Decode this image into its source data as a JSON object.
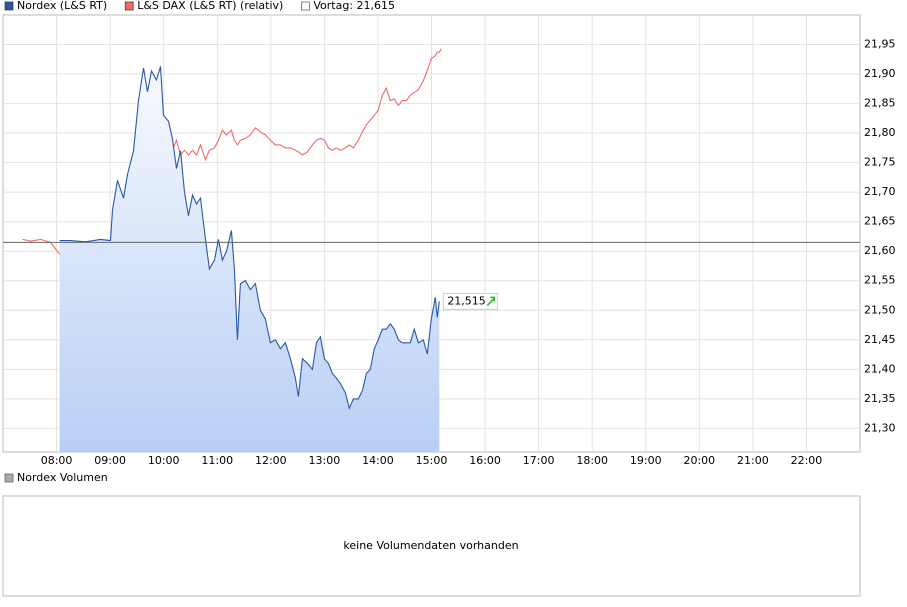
{
  "chart_data": {
    "type": "line",
    "x": [
      7.366,
      7.515,
      7.701,
      7.888,
      8.056,
      8.261,
      8.541,
      8.821,
      9.007,
      9.045,
      9.138,
      9.25,
      9.325,
      9.437,
      9.53,
      9.623,
      9.698,
      9.772,
      9.866,
      9.94,
      9.996,
      10.09,
      10.164,
      10.239,
      10.313,
      10.388,
      10.463,
      10.537,
      10.612,
      10.687,
      10.78,
      10.854,
      10.948,
      11.022,
      11.097,
      11.172,
      11.265,
      11.321,
      11.377,
      11.433,
      11.526,
      11.619,
      11.713,
      11.806,
      11.899,
      11.993,
      12.086,
      12.179,
      12.272,
      12.366,
      12.459,
      12.515,
      12.59,
      12.683,
      12.776,
      12.851,
      12.925,
      13.0,
      13.075,
      13.149,
      13.224,
      13.299,
      13.392,
      13.466,
      13.541,
      13.634,
      13.709,
      13.784,
      13.858,
      13.933,
      14.007,
      14.082,
      14.157,
      14.231,
      14.306,
      14.381,
      14.455,
      14.53,
      14.604,
      14.679,
      14.754,
      14.847,
      14.922,
      14.996,
      15.071,
      15.108,
      15.146,
      15.183
    ],
    "series": [
      {
        "name": "Nordex (L&S RT)",
        "color": "#2a56a8",
        "fill": "#b8cff5",
        "values": [
          null,
          null,
          null,
          null,
          21.618,
          21.618,
          21.616,
          21.62,
          21.618,
          21.67,
          21.72,
          21.69,
          21.73,
          21.77,
          21.855,
          21.91,
          21.87,
          21.905,
          21.89,
          21.913,
          21.83,
          21.82,
          21.79,
          21.74,
          21.77,
          21.7,
          21.66,
          21.695,
          21.68,
          21.69,
          21.62,
          21.57,
          21.585,
          21.62,
          21.585,
          21.6,
          21.635,
          21.57,
          21.45,
          21.545,
          21.55,
          21.535,
          21.545,
          21.5,
          21.485,
          21.445,
          21.45,
          21.435,
          21.445,
          21.418,
          21.385,
          21.354,
          21.418,
          21.41,
          21.4,
          21.445,
          21.455,
          21.418,
          21.41,
          21.393,
          21.385,
          21.376,
          21.36,
          21.334,
          21.35,
          21.35,
          21.364,
          21.393,
          21.4,
          21.435,
          21.45,
          21.468,
          21.468,
          21.477,
          21.468,
          21.45,
          21.445,
          21.445,
          21.445,
          21.468,
          21.445,
          21.45,
          21.426,
          21.485,
          21.522,
          21.488,
          21.515,
          null
        ]
      },
      {
        "name": "L&S DAX (L&S RT) (relativ)",
        "color": "#f06a6a",
        "values": [
          21.62,
          21.617,
          21.62,
          21.615,
          21.595,
          21.611,
          21.6,
          21.59,
          21.583,
          21.611,
          21.662,
          21.679,
          21.67,
          21.713,
          21.738,
          21.755,
          21.763,
          21.771,
          21.788,
          21.825,
          21.83,
          21.788,
          21.771,
          21.788,
          21.763,
          21.771,
          21.763,
          21.771,
          21.763,
          21.78,
          21.755,
          21.771,
          21.775,
          21.788,
          21.805,
          21.797,
          21.805,
          21.788,
          21.78,
          21.788,
          21.791,
          21.797,
          21.809,
          21.802,
          21.797,
          21.788,
          21.78,
          21.78,
          21.775,
          21.775,
          21.771,
          21.768,
          21.763,
          21.768,
          21.78,
          21.788,
          21.791,
          21.788,
          21.775,
          21.771,
          21.775,
          21.771,
          21.775,
          21.78,
          21.775,
          21.788,
          21.802,
          21.814,
          21.822,
          21.83,
          21.839,
          21.864,
          21.876,
          21.855,
          21.858,
          21.847,
          21.855,
          21.855,
          21.864,
          21.869,
          21.873,
          21.889,
          21.906,
          21.926,
          21.931,
          21.937,
          21.937,
          21.943
        ]
      }
    ],
    "reference_line": {
      "label": "Vortag: 21,615",
      "value": 21.615,
      "color": "#666666"
    },
    "last_value": {
      "x": 15.146,
      "value": 21.515,
      "label": "21,515"
    },
    "xlim": [
      7,
      23
    ],
    "xticks": [
      {
        "value": 8,
        "label": "08:00"
      },
      {
        "value": 9,
        "label": "09:00"
      },
      {
        "value": 10,
        "label": "10:00"
      },
      {
        "value": 11,
        "label": "11:00"
      },
      {
        "value": 12,
        "label": "12:00"
      },
      {
        "value": 13,
        "label": "13:00"
      },
      {
        "value": 14,
        "label": "14:00"
      },
      {
        "value": 15,
        "label": "15:00"
      },
      {
        "value": 16,
        "label": "16:00"
      },
      {
        "value": 17,
        "label": "17:00"
      },
      {
        "value": 18,
        "label": "18:00"
      },
      {
        "value": 19,
        "label": "19:00"
      },
      {
        "value": 20,
        "label": "20:00"
      },
      {
        "value": 21,
        "label": "21:00"
      },
      {
        "value": 22,
        "label": "22:00"
      }
    ],
    "ylim": [
      21.26,
      22.0
    ],
    "yticks": [
      {
        "value": 21.3,
        "label": "21,30"
      },
      {
        "value": 21.35,
        "label": "21,35"
      },
      {
        "value": 21.4,
        "label": "21,40"
      },
      {
        "value": 21.45,
        "label": "21,45"
      },
      {
        "value": 21.5,
        "label": "21,50"
      },
      {
        "value": 21.55,
        "label": "21,55"
      },
      {
        "value": 21.6,
        "label": "21,60"
      },
      {
        "value": 21.65,
        "label": "21,65"
      },
      {
        "value": 21.7,
        "label": "21,70"
      },
      {
        "value": 21.75,
        "label": "21,75"
      },
      {
        "value": 21.8,
        "label": "21,80"
      },
      {
        "value": 21.85,
        "label": "21,85"
      },
      {
        "value": 21.9,
        "label": "21,90"
      },
      {
        "value": 21.95,
        "label": "21,95"
      }
    ],
    "grid": true,
    "volume_panel": {
      "legend": "Nordex Volumen",
      "color": "#aaaaaa",
      "message": "keine Volumendaten vorhanden"
    }
  }
}
